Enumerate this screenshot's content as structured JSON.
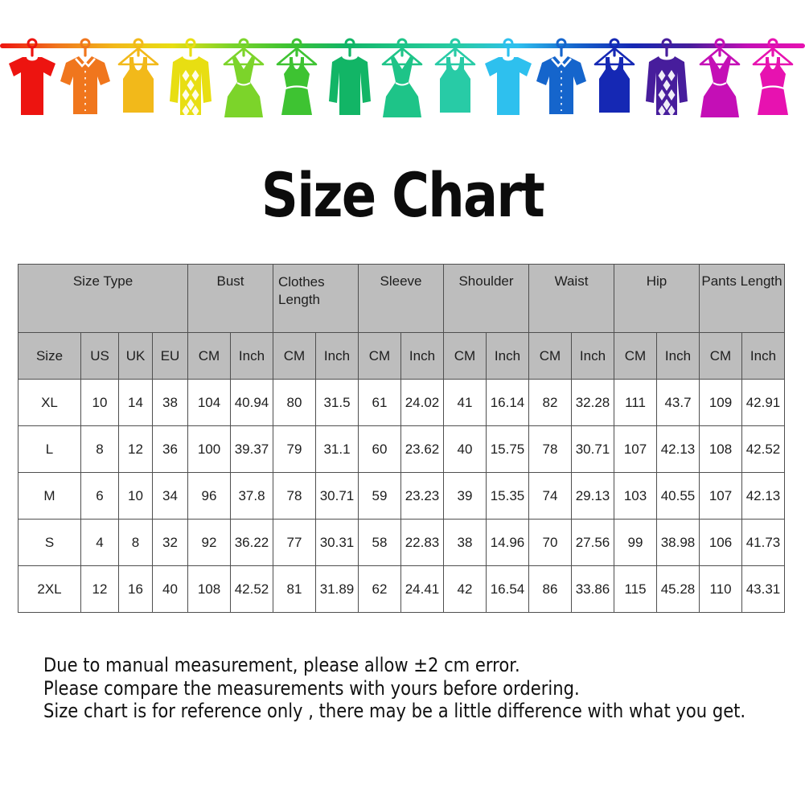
{
  "title": "Size Chart",
  "banner": {
    "items": [
      {
        "name": "red-tshirt",
        "type": "tshirt",
        "color": "#ed1410"
      },
      {
        "name": "orange-shirt",
        "type": "shirt",
        "color": "#f0761d"
      },
      {
        "name": "gold-tank-top",
        "type": "tank",
        "color": "#f2b91a"
      },
      {
        "name": "yellow-argyle-sweater",
        "type": "sweater-argyle",
        "color": "#e8de12"
      },
      {
        "name": "lime-dress",
        "type": "dress",
        "color": "#7cd42a"
      },
      {
        "name": "green-tank-dress",
        "type": "tank-dress",
        "color": "#3ec332"
      },
      {
        "name": "green-sweater",
        "type": "sweater",
        "color": "#12b566"
      },
      {
        "name": "teal-dress",
        "type": "dress",
        "color": "#1ec488"
      },
      {
        "name": "teal-tank-top",
        "type": "tank",
        "color": "#28cba6"
      },
      {
        "name": "cyan-tshirt",
        "type": "tshirt",
        "color": "#2ec0ee"
      },
      {
        "name": "blue-shirt",
        "type": "shirt",
        "color": "#1565cc"
      },
      {
        "name": "navy-tank-top",
        "type": "tank",
        "color": "#1528b4"
      },
      {
        "name": "purple-argyle-sweater",
        "type": "sweater-argyle",
        "color": "#471d9c"
      },
      {
        "name": "magenta-dress",
        "type": "dress",
        "color": "#c40fb6"
      },
      {
        "name": "pink-tank-top",
        "type": "tank-dress",
        "color": "#e712b0"
      }
    ]
  },
  "table": {
    "groups": [
      {
        "label": "Size Type",
        "span": 4,
        "align": "center"
      },
      {
        "label": "Bust",
        "span": 2,
        "align": "center"
      },
      {
        "label": "Clothes Length",
        "span": 2,
        "align": "left"
      },
      {
        "label": "Sleeve",
        "span": 2,
        "align": "center"
      },
      {
        "label": "Shoulder",
        "span": 2,
        "align": "center"
      },
      {
        "label": "Waist",
        "span": 2,
        "align": "center"
      },
      {
        "label": "Hip",
        "span": 2,
        "align": "center"
      },
      {
        "label": "Pants Length",
        "span": 2,
        "align": "center"
      }
    ],
    "subheaders": [
      "Size",
      "US",
      "UK",
      "EU",
      "CM",
      "Inch",
      "CM",
      "Inch",
      "CM",
      "Inch",
      "CM",
      "Inch",
      "CM",
      "Inch",
      "CM",
      "Inch",
      "CM",
      "Inch"
    ],
    "rows": [
      [
        "XL",
        "10",
        "14",
        "38",
        "104",
        "40.94",
        "80",
        "31.5",
        "61",
        "24.02",
        "41",
        "16.14",
        "82",
        "32.28",
        "111",
        "43.7",
        "109",
        "42.91"
      ],
      [
        "L",
        "8",
        "12",
        "36",
        "100",
        "39.37",
        "79",
        "31.1",
        "60",
        "23.62",
        "40",
        "15.75",
        "78",
        "30.71",
        "107",
        "42.13",
        "108",
        "42.52"
      ],
      [
        "M",
        "6",
        "10",
        "34",
        "96",
        "37.8",
        "78",
        "30.71",
        "59",
        "23.23",
        "39",
        "15.35",
        "74",
        "29.13",
        "103",
        "40.55",
        "107",
        "42.13"
      ],
      [
        "S",
        "4",
        "8",
        "32",
        "92",
        "36.22",
        "77",
        "30.31",
        "58",
        "22.83",
        "38",
        "14.96",
        "70",
        "27.56",
        "99",
        "38.98",
        "106",
        "41.73"
      ],
      [
        "2XL",
        "12",
        "16",
        "40",
        "108",
        "42.52",
        "81",
        "31.89",
        "62",
        "24.41",
        "42",
        "16.54",
        "86",
        "33.86",
        "115",
        "45.28",
        "110",
        "43.31"
      ]
    ]
  },
  "notes": [
    "Due to manual measurement, please allow ±2 cm error.",
    "Please compare the measurements with yours before ordering.",
    "Size chart is for reference only , there may be a little difference with what you get."
  ]
}
